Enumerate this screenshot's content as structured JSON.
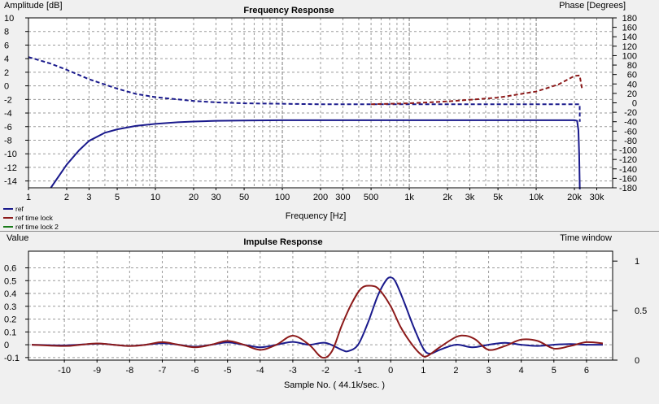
{
  "chart_data": [
    {
      "type": "line",
      "title": "Frequency Response",
      "ylabel": "Amplitude [dB]",
      "y2label": "Phase [Degrees]",
      "xlabel": "Frequency [Hz]",
      "xscale": "log",
      "xlim": [
        1,
        40000
      ],
      "ylim": [
        -15,
        10
      ],
      "y2lim": [
        -180,
        180
      ],
      "grid": true,
      "legend_position": "bottom-left",
      "x_ticks": [
        {
          "v": 1,
          "label": "1"
        },
        {
          "v": 2,
          "label": "2"
        },
        {
          "v": 3,
          "label": "3"
        },
        {
          "v": 5,
          "label": "5"
        },
        {
          "v": 10,
          "label": "10"
        },
        {
          "v": 20,
          "label": "20"
        },
        {
          "v": 30,
          "label": "30"
        },
        {
          "v": 50,
          "label": "50"
        },
        {
          "v": 100,
          "label": "100"
        },
        {
          "v": 200,
          "label": "200"
        },
        {
          "v": 300,
          "label": "300"
        },
        {
          "v": 500,
          "label": "500"
        },
        {
          "v": 1000,
          "label": "1k"
        },
        {
          "v": 2000,
          "label": "2k"
        },
        {
          "v": 3000,
          "label": "3k"
        },
        {
          "v": 5000,
          "label": "5k"
        },
        {
          "v": 10000,
          "label": "10k"
        },
        {
          "v": 20000,
          "label": "20k"
        },
        {
          "v": 30000,
          "label": "30k"
        }
      ],
      "y_ticks": [
        10,
        8,
        6,
        4,
        2,
        0,
        -2,
        -4,
        -6,
        -8,
        -10,
        -12,
        -14
      ],
      "y2_ticks": [
        180,
        160,
        140,
        120,
        100,
        80,
        60,
        40,
        20,
        0,
        -20,
        -40,
        -60,
        -80,
        -100,
        -120,
        -140,
        -160,
        -180
      ],
      "series": [
        {
          "name": "ref",
          "color": "#1a1a8c",
          "style": "solid",
          "axis": "left",
          "x": [
            1.5,
            2,
            2.5,
            3,
            4,
            5,
            7,
            10,
            15,
            20,
            30,
            50,
            100,
            1000,
            10000,
            20000,
            21000,
            21500,
            21800,
            22050
          ],
          "y": [
            -15.0,
            -11.6,
            -9.5,
            -8.1,
            -6.9,
            -6.4,
            -5.9,
            -5.6,
            -5.35,
            -5.25,
            -5.15,
            -5.1,
            -5.05,
            -5.05,
            -5.05,
            -5.05,
            -5.15,
            -6.5,
            -10.0,
            -15.5
          ]
        },
        {
          "name": "ref",
          "color": "#1a1a8c",
          "style": "dashed",
          "axis": "right",
          "x": [
            1,
            1.5,
            2,
            3,
            5,
            7,
            10,
            20,
            30,
            50,
            100,
            200,
            500,
            1000,
            5000,
            20000,
            22000,
            22050
          ],
          "y": [
            97,
            83,
            70,
            50,
            30,
            19,
            12,
            4,
            1,
            -1,
            -2,
            -3,
            -3,
            -3,
            -3,
            -3,
            -3,
            -40
          ]
        },
        {
          "name": "ref time lock",
          "color": "#8c1a1a",
          "style": "dashed",
          "axis": "right",
          "x": [
            500,
            1000,
            2000,
            5000,
            10000,
            15000,
            20000,
            22000,
            23000
          ],
          "y": [
            -3,
            -1,
            3,
            11,
            24,
            39,
            57,
            58,
            29
          ]
        },
        {
          "name": "ref time lock 2",
          "color": "#1a7a1a",
          "style": "dashed",
          "axis": "right",
          "x": [],
          "y": []
        }
      ]
    },
    {
      "type": "line",
      "title": "Impulse Response",
      "ylabel": "Value",
      "y2label": "Time window",
      "xlabel": "Sample No. ( 44.1k/sec. )",
      "xlim": [
        -11.1,
        6.8
      ],
      "ylim": [
        -0.12,
        0.73
      ],
      "y2lim": [
        0,
        1.1
      ],
      "grid": true,
      "x_ticks": [
        -10,
        -9,
        -8,
        -7,
        -6,
        -5,
        -4,
        -3,
        -2,
        -1,
        0,
        1,
        2,
        3,
        4,
        5,
        6
      ],
      "y_ticks": [
        {
          "v": 0.6,
          "label": "0.6"
        },
        {
          "v": 0.5,
          "label": "0.5"
        },
        {
          "v": 0.4,
          "label": "0.4"
        },
        {
          "v": 0.3,
          "label": "0.3"
        },
        {
          "v": 0.2,
          "label": "0.2"
        },
        {
          "v": 0.1,
          "label": "0.1"
        },
        {
          "v": 0,
          "label": "0"
        },
        {
          "v": -0.1,
          "label": "-0.1"
        }
      ],
      "y2_ticks": [
        {
          "v": 1,
          "label": "1"
        },
        {
          "v": 0.5,
          "label": "0.5"
        },
        {
          "v": 0,
          "label": "0"
        }
      ],
      "series": [
        {
          "name": "ref",
          "color": "#1a1a8c",
          "x": [
            -11,
            -10,
            -9,
            -8.5,
            -8,
            -7.5,
            -7,
            -6.5,
            -6,
            -5.5,
            -5,
            -4.5,
            -4,
            -3.5,
            -3,
            -2.5,
            -2,
            -1.5,
            -1.3,
            -1.0,
            -0.7,
            -0.4,
            -0.15,
            0,
            0.15,
            0.4,
            0.7,
            1.0,
            1.2,
            1.5,
            2,
            2.5,
            3,
            3.5,
            4,
            4.5,
            5,
            5.5,
            6,
            6.5
          ],
          "y": [
            0.0,
            -0.005,
            0.008,
            0.0,
            -0.01,
            0.0,
            0.012,
            0.0,
            -0.015,
            0.0,
            0.018,
            0.0,
            -0.02,
            0.0,
            0.022,
            0.0,
            0.015,
            -0.04,
            -0.05,
            0.0,
            0.17,
            0.38,
            0.5,
            0.525,
            0.49,
            0.34,
            0.14,
            -0.03,
            -0.07,
            -0.04,
            0.0,
            -0.02,
            0.0,
            0.015,
            0.0,
            -0.01,
            0.0,
            0.005,
            0.0,
            0.0
          ]
        },
        {
          "name": "ref time lock",
          "color": "#8c1a1a",
          "x": [
            -11,
            -10,
            -9.5,
            -9,
            -8.5,
            -8,
            -7.5,
            -7,
            -6.5,
            -6,
            -5.5,
            -5,
            -4.5,
            -4,
            -3.5,
            -3,
            -2.5,
            -2.1,
            -1.8,
            -1.5,
            -1.2,
            -0.9,
            -0.6,
            -0.35,
            0,
            0.3,
            0.6,
            0.9,
            1.1,
            1.5,
            2,
            2.3,
            2.6,
            3,
            3.5,
            4,
            4.5,
            5,
            5.5,
            6,
            6.5
          ],
          "y": [
            0.0,
            -0.01,
            0.0,
            0.01,
            0.0,
            -0.01,
            0.0,
            0.02,
            0.0,
            -0.02,
            0.0,
            0.03,
            0.0,
            -0.04,
            0.0,
            0.07,
            0.0,
            -0.1,
            -0.05,
            0.15,
            0.32,
            0.44,
            0.46,
            0.43,
            0.3,
            0.14,
            0.02,
            -0.07,
            -0.09,
            -0.02,
            0.06,
            0.07,
            0.04,
            -0.04,
            -0.01,
            0.04,
            0.03,
            -0.03,
            -0.01,
            0.02,
            0.01
          ]
        }
      ]
    }
  ]
}
